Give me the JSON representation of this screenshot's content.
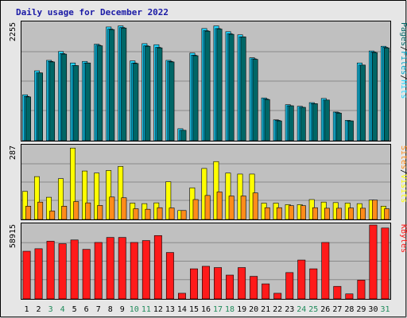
{
  "chart_data": {
    "type": "bar",
    "title": "Daily usage for December 2022",
    "categories": [
      "1",
      "2",
      "3",
      "4",
      "5",
      "6",
      "7",
      "8",
      "9",
      "10",
      "11",
      "12",
      "13",
      "14",
      "15",
      "16",
      "17",
      "18",
      "19",
      "20",
      "21",
      "22",
      "23",
      "24",
      "25",
      "26",
      "27",
      "28",
      "29",
      "30",
      "31"
    ],
    "weekend_days": [
      3,
      4,
      10,
      11,
      17,
      18,
      24,
      25,
      31
    ],
    "colors": {
      "pages": "#006666",
      "files": "#00a8cc",
      "hits": "#22d7ff",
      "visits": "#ffff00",
      "sites": "#ff8c1a",
      "kbytes": "#ff1a1a",
      "weekday_tick": "#000000",
      "weekend_tick": "#1f8a5a",
      "title": "#1a1aa6"
    },
    "panels": [
      {
        "ymax_label": "2255",
        "ymax": 2255,
        "legend": [
          "Pages",
          "/",
          "Files",
          "/",
          "Hits"
        ],
        "series": [
          {
            "name": "Hits",
            "values": [
              880,
              1340,
              1540,
              1710,
              1490,
              1520,
              1850,
              2180,
              2200,
              1530,
              1860,
              1840,
              1540,
              230,
              1680,
              2150,
              2200,
              2090,
              2030,
              1590,
              820,
              400,
              690,
              660,
              730,
              810,
              550,
              390,
              1490,
              1720,
              1810
            ]
          },
          {
            "name": "Files",
            "values": [
              850,
              1300,
              1520,
              1670,
              1440,
              1490,
              1830,
              2140,
              2170,
              1490,
              1820,
              1790,
              1520,
              200,
              1640,
              2110,
              2150,
              2050,
              1990,
              1570,
              800,
              390,
              670,
              640,
              710,
              780,
              540,
              380,
              1450,
              1700,
              1790
            ]
          },
          {
            "name": "Pages",
            "values": [
              840,
              1300,
              1510,
              1660,
              1440,
              1490,
              1820,
              2130,
              2160,
              1480,
              1810,
              1780,
              1510,
              200,
              1630,
              2100,
              2140,
              2040,
              1990,
              1560,
              790,
              380,
              670,
              640,
              710,
              780,
              530,
              380,
              1450,
              1690,
              1780
            ]
          }
        ]
      },
      {
        "ymax_label": "287",
        "ymax": 287,
        "legend": [
          "Sites",
          "/",
          "Visits"
        ],
        "series": [
          {
            "name": "Visits",
            "values": [
              110,
              168,
              87,
              160,
              280,
              190,
              182,
              192,
              208,
              64,
              62,
              65,
              148,
              35,
              124,
              200,
              227,
              182,
              178,
              178,
              64,
              64,
              58,
              58,
              78,
              68,
              66,
              64,
              62,
              76,
              52
            ]
          },
          {
            "name": "Sites",
            "values": [
              52,
              68,
              33,
              52,
              70,
              65,
              55,
              88,
              85,
              42,
              40,
              46,
              45,
              35,
              78,
              94,
              108,
              92,
              92,
              104,
              46,
              46,
              54,
              54,
              46,
              44,
              44,
              45,
              44,
              76,
              42
            ]
          }
        ]
      },
      {
        "ymax_label": "58915",
        "ymax": 58915,
        "legend": [
          "KBytes"
        ],
        "series": [
          {
            "name": "KBytes",
            "values": [
              38000,
              40000,
              46000,
              44000,
              47000,
              39500,
              45000,
              49000,
              49000,
              45000,
              46500,
              50500,
              37000,
              4500,
              24000,
              26000,
              25000,
              19000,
              25000,
              18000,
              12000,
              4500,
              21000,
              31000,
              24000,
              45000,
              10000,
              4000,
              15000,
              58900,
              56500
            ]
          }
        ]
      }
    ]
  }
}
